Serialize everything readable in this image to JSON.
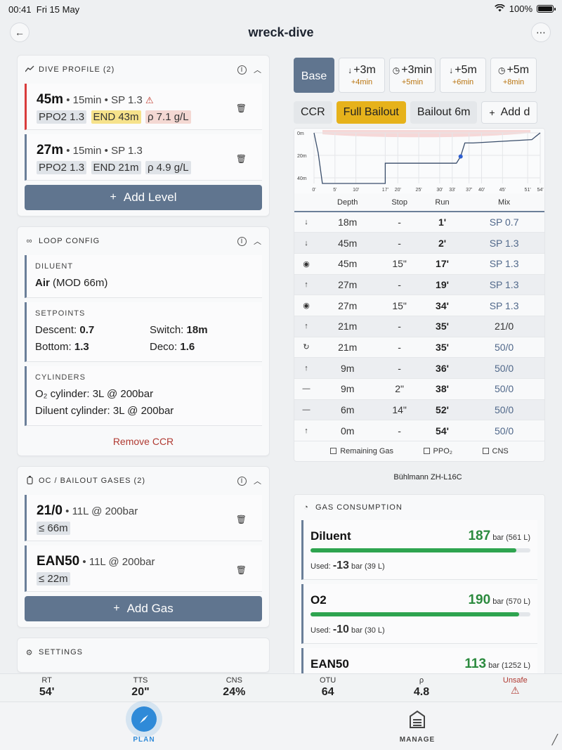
{
  "status": {
    "time": "00:41",
    "date": "Fri 15 May",
    "battery": "100%"
  },
  "header": {
    "title": "wreck-dive",
    "back_icon": "arrow-left-icon",
    "more_icon": "ellipsis-icon"
  },
  "dive_profile": {
    "title": "DIVE PROFILE (2)",
    "levels": [
      {
        "depth": "45m",
        "details": "• 15min • SP 1.3",
        "warning": "⚠",
        "chips": [
          "PPO2 1.3",
          "END 43m",
          "ρ 7.1 g/L"
        ]
      },
      {
        "depth": "27m",
        "details": "• 15min • SP 1.3",
        "chips": [
          "PPO2 1.3",
          "END 21m",
          "ρ 4.9 g/L"
        ]
      }
    ],
    "add_label": "Add Level"
  },
  "loop_config": {
    "title": "LOOP CONFIG",
    "diluent_label": "DILUENT",
    "diluent_gas": "Air",
    "diluent_mod": "(MOD 66m)",
    "setpoints_label": "SETPOINTS",
    "descent_label": "Descent:",
    "descent_value": "0.7",
    "switch_label": "Switch:",
    "switch_value": "18m",
    "bottom_label": "Bottom:",
    "bottom_value": "1.3",
    "deco_label": "Deco:",
    "deco_value": "1.6",
    "cylinders_label": "CYLINDERS",
    "o2_cyl_label": "O₂ cylinder:",
    "o2_cyl_value": "3L @ 200bar",
    "dil_cyl_label": "Diluent cylinder:",
    "dil_cyl_value": "3L @ 200bar",
    "remove_label": "Remove CCR"
  },
  "bailout": {
    "title": "OC / BAILOUT GASES (2)",
    "gases": [
      {
        "name": "21/0",
        "details": "• 11L @ 200bar",
        "mod": "≤ 66m"
      },
      {
        "name": "EAN50",
        "details": "• 11L @ 200bar",
        "mod": "≤ 22m"
      }
    ],
    "add_label": "Add Gas"
  },
  "settings": {
    "title": "SETTINGS"
  },
  "scenarios": {
    "base_label": "Base",
    "tiles": [
      {
        "arrow": "↓",
        "label": "+3m",
        "sub": "+4min"
      },
      {
        "arrow": "◷",
        "label": "+3min",
        "sub": "+5min"
      },
      {
        "arrow": "↓",
        "label": "+5m",
        "sub": "+6min"
      },
      {
        "arrow": "◷",
        "label": "+5m",
        "sub": "+8min"
      }
    ]
  },
  "modes": {
    "ccr": "CCR",
    "full_bailout": "Full Bailout",
    "bailout_6m": "Bailout 6m",
    "add": "Add d"
  },
  "chart_data": {
    "type": "line",
    "x_ticks": [
      "0'",
      "5'",
      "10'",
      "17'",
      "20'",
      "25'",
      "30'",
      "33'",
      "37'",
      "40'",
      "45'",
      "51'",
      "54'"
    ],
    "y_ticks": [
      "0m",
      "20m",
      "40m"
    ],
    "x": [
      0,
      1,
      2,
      17,
      17,
      19,
      34,
      35,
      35,
      36,
      38,
      52,
      54
    ],
    "y": [
      0,
      18,
      45,
      45,
      27,
      27,
      27,
      21,
      21,
      9,
      9,
      6,
      0
    ],
    "xlim": [
      0,
      54
    ],
    "ylim": [
      0,
      45
    ],
    "highlight_point": {
      "x": 35,
      "y": 21
    }
  },
  "plan_table": {
    "headers": [
      "Depth",
      "Stop",
      "Run",
      "Mix"
    ],
    "rows": [
      {
        "icon": "↓",
        "icon_name": "descend-icon",
        "color": "red",
        "depth": "18m",
        "stop": "-",
        "run": "1'",
        "mix": "SP 0.7",
        "mix_style": "sp"
      },
      {
        "icon": "↓",
        "icon_name": "descend-icon",
        "color": "red",
        "depth": "45m",
        "stop": "-",
        "run": "2'",
        "mix": "SP 1.3",
        "mix_style": "sp"
      },
      {
        "icon": "◉",
        "icon_name": "stop-icon",
        "color": "blue",
        "depth": "45m",
        "stop": "15\"",
        "run": "17'",
        "mix": "SP 1.3",
        "mix_style": "sp"
      },
      {
        "icon": "↑",
        "icon_name": "ascend-icon",
        "color": "green",
        "depth": "27m",
        "stop": "-",
        "run": "19'",
        "mix": "SP 1.3",
        "mix_style": "sp"
      },
      {
        "icon": "◉",
        "icon_name": "stop-icon",
        "color": "blue",
        "depth": "27m",
        "stop": "15\"",
        "run": "34'",
        "mix": "SP 1.3",
        "mix_style": "sp"
      },
      {
        "icon": "↑",
        "icon_name": "ascend-icon",
        "color": "green",
        "depth": "21m",
        "stop": "-",
        "run": "35'",
        "mix": "21/0",
        "mix_style": "plain"
      },
      {
        "icon": "↻",
        "icon_name": "gas-switch-icon",
        "color": "cyan",
        "depth": "21m",
        "stop": "-",
        "run": "35'",
        "mix": "50/0",
        "mix_style": "sp"
      },
      {
        "icon": "↑",
        "icon_name": "ascend-icon",
        "color": "green",
        "depth": "9m",
        "stop": "-",
        "run": "36'",
        "mix": "50/0",
        "mix_style": "sp"
      },
      {
        "icon": "—",
        "icon_name": "deco-stop-icon",
        "color": "yellow",
        "depth": "9m",
        "stop": "2\"",
        "run": "38'",
        "mix": "50/0",
        "mix_style": "sp"
      },
      {
        "icon": "—",
        "icon_name": "deco-stop-icon",
        "color": "yellow",
        "depth": "6m",
        "stop": "14\"",
        "run": "52'",
        "mix": "50/0",
        "mix_style": "sp"
      },
      {
        "icon": "↑",
        "icon_name": "ascend-icon",
        "color": "green",
        "depth": "0m",
        "stop": "-",
        "run": "54'",
        "mix": "50/0",
        "mix_style": "sp"
      }
    ],
    "legend": [
      "Remaining Gas",
      "PPO₂",
      "CNS"
    ]
  },
  "algorithm": "Bühlmann ZH-L16C",
  "gas_consumption": {
    "title": "GAS CONSUMPTION",
    "used_label": "Used:",
    "items": [
      {
        "name": "Diluent",
        "remaining": "187",
        "remaining_unit": "bar (561 L)",
        "fill": 0.935,
        "used": "-13",
        "used_unit": "bar (39 L)"
      },
      {
        "name": "O2",
        "remaining": "190",
        "remaining_unit": "bar (570 L)",
        "fill": 0.95,
        "used": "-10",
        "used_unit": "bar (30 L)"
      },
      {
        "name": "EAN50",
        "remaining": "113",
        "remaining_unit": "bar (1252 L)",
        "fill": 0.565,
        "used": "",
        "used_unit": ""
      }
    ]
  },
  "summary": {
    "rt_label": "RT",
    "rt_value": "54'",
    "tts_label": "TTS",
    "tts_value": "20\"",
    "cns_label": "CNS",
    "cns_value": "24%",
    "otu_label": "OTU",
    "otu_value": "64",
    "rho_label": "ρ",
    "rho_value": "4.8",
    "unsafe_label": "Unsafe",
    "unsafe_icon": "⚠"
  },
  "tabs": {
    "plan": "PLAN",
    "manage": "MANAGE"
  },
  "colors": {
    "accent": "#60758f",
    "active_pill": "#e6b21b",
    "gas_green": "#2b8a3e",
    "tab_blue": "#2f8ad8",
    "danger": "#d93b3b"
  }
}
